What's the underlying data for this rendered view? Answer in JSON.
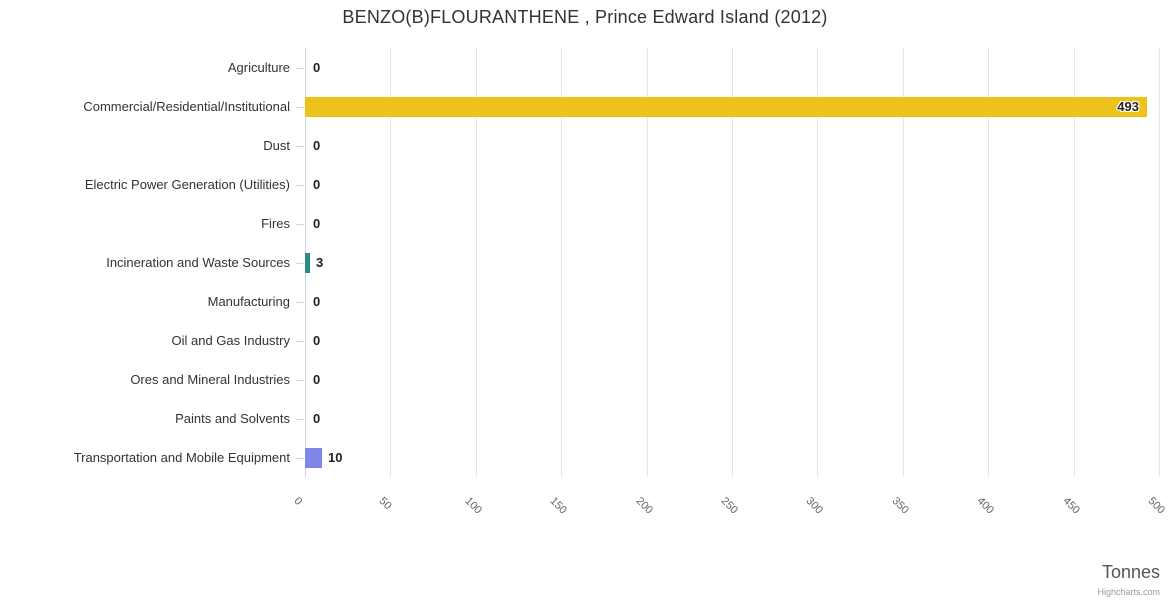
{
  "chart_data": {
    "type": "bar",
    "orientation": "horizontal",
    "title": "BENZO(B)FLOURANTHENE , Prince Edward Island (2012)",
    "categories": [
      "Agriculture",
      "Commercial/Residential/Institutional",
      "Dust",
      "Electric Power Generation (Utilities)",
      "Fires",
      "Incineration and Waste Sources",
      "Manufacturing",
      "Oil and Gas Industry",
      "Ores and Mineral Industries",
      "Paints and Solvents",
      "Transportation and Mobile Equipment"
    ],
    "values": [
      0,
      493,
      0,
      0,
      0,
      3,
      0,
      0,
      0,
      0,
      10
    ],
    "data_labels": [
      "0",
      "493",
      "0",
      "0",
      "0",
      "3",
      "0",
      "0",
      "0",
      "0",
      "10"
    ],
    "bar_colors": [
      null,
      "#edc21a",
      null,
      null,
      null,
      "#2d8b87",
      null,
      null,
      null,
      null,
      "#8085e9"
    ],
    "xlabel": "Tonnes",
    "xlim": [
      0,
      500
    ],
    "x_ticks": [
      0,
      50,
      100,
      150,
      200,
      250,
      300,
      350,
      400,
      450,
      500
    ],
    "grid": true,
    "legend": "none",
    "credit": "Highcharts.com",
    "colors": {
      "grid": "#e6e6e6",
      "axis_line": "#ccd6eb",
      "category_label": "#333333",
      "tick_label": "#666666",
      "data_label": "#222222",
      "title": "#333333",
      "axis_title": "#555555",
      "credit": "#999999"
    }
  }
}
